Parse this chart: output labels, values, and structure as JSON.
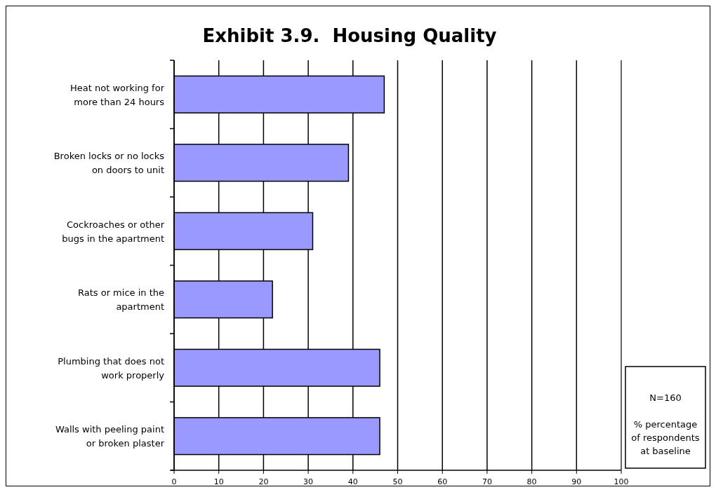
{
  "chart_data": {
    "type": "bar",
    "orientation": "horizontal",
    "title": "Exhibit 3.9.  Housing Quality",
    "categories": [
      "Heat not working for more than 24 hours",
      "Broken locks or no locks on doors to unit",
      "Cockroaches or other bugs in the apartment",
      "Rats or mice in the apartment",
      "Plumbing that does not work properly",
      "Walls with peeling paint or broken plaster"
    ],
    "values": [
      47,
      39,
      31,
      22,
      46,
      46
    ],
    "color": "#9999ff",
    "xlim": [
      0,
      100
    ],
    "xticks": [
      0,
      10,
      20,
      30,
      40,
      50,
      60,
      70,
      80,
      90,
      100
    ],
    "grid": "x",
    "annotations": [
      "N=160",
      "% percentage of respondents at baseline"
    ]
  }
}
